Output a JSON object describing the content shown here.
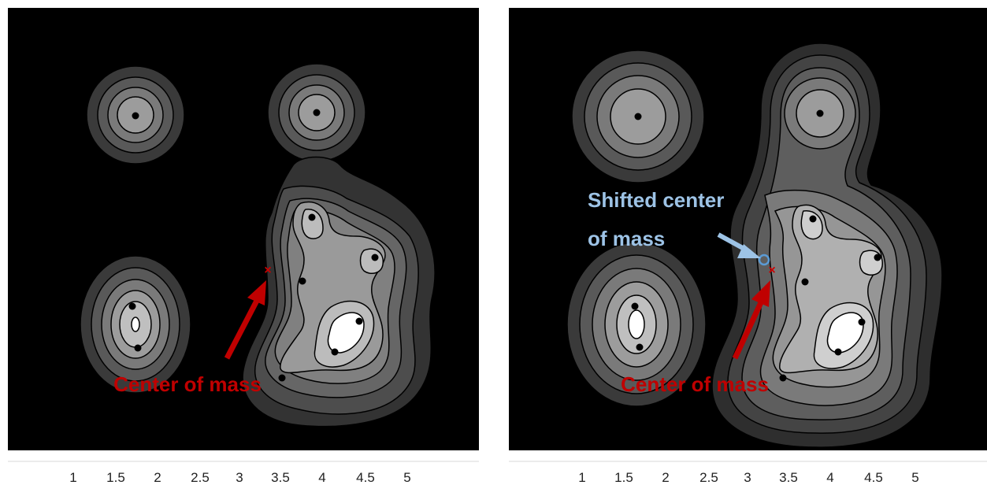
{
  "panels": [
    {
      "annotation": "Center of mass",
      "x_ticks": [
        "1",
        "1.5",
        "2",
        "2.5",
        "3",
        "3.5",
        "4",
        "4.5",
        "5"
      ]
    },
    {
      "annotation": "Center of mass",
      "shifted_label_line1": "Shifted center",
      "shifted_label_line2": "of mass",
      "x_ticks": [
        "1",
        "1.5",
        "2",
        "2.5",
        "3",
        "3.5",
        "4",
        "4.5",
        "5"
      ]
    }
  ],
  "colors": {
    "background": "#000000",
    "center_marker": "#cc0000",
    "arrow_red": "#c00000",
    "arrow_blue": "#9dc3e6"
  }
}
